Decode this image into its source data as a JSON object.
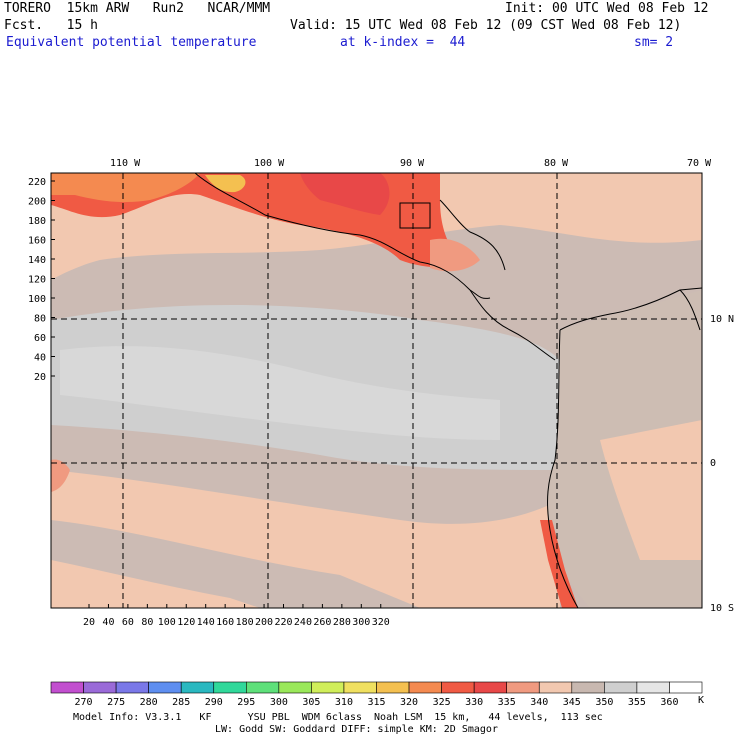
{
  "header": {
    "model": "TORERO  15km ARW   Run2   NCAR/MMM",
    "init": "Init: 00 UTC Wed 08 Feb 12",
    "fcst": "Fcst.   15 h",
    "valid": "Valid: 15 UTC Wed 08 Feb 12 (09 CST Wed 08 Feb 12)",
    "field": "Equivalent potential temperature",
    "level": "at k-index =  44",
    "smooth": "sm= 2"
  },
  "map": {
    "lon_labels": [
      "110 W",
      "100 W",
      "90 W",
      "80 W",
      "70 W"
    ],
    "lat_labels": [
      "10 N",
      "0",
      "10 S"
    ],
    "y_grid_labels": [
      "220",
      "200",
      "180",
      "160",
      "140",
      "120",
      "100",
      "80",
      "60",
      "40",
      "20"
    ],
    "x_grid_labels": [
      "20",
      "40",
      "60",
      "80",
      "100",
      "120",
      "140",
      "160",
      "180",
      "200",
      "220",
      "240",
      "260",
      "280",
      "300",
      "320"
    ]
  },
  "colorbar": {
    "labels": [
      "270",
      "275",
      "280",
      "285",
      "290",
      "295",
      "300",
      "305",
      "310",
      "315",
      "320",
      "325",
      "330",
      "335",
      "340",
      "345",
      "350",
      "355",
      "360"
    ],
    "unit": "K",
    "colors": [
      "#c24fcf",
      "#9a6ad8",
      "#7a78e8",
      "#5e8ef0",
      "#2ab8c0",
      "#30d89a",
      "#5ee07a",
      "#9ae85a",
      "#d0ee5a",
      "#f0e060",
      "#f4c050",
      "#f48a50",
      "#f05a44",
      "#e84848",
      "#f09a80",
      "#f2c8b0",
      "#c8b8b0",
      "#cfcfcf",
      "#e6e6e6",
      "#ffffff"
    ]
  },
  "footer": {
    "line1": "Model Info: V3.3.1   KF      YSU PBL  WDM 6class  Noah LSM  15 km,   44 levels,  113 sec",
    "line2": "LW: Godd SW: Goddard DIFF: simple KM: 2D Smagor"
  }
}
